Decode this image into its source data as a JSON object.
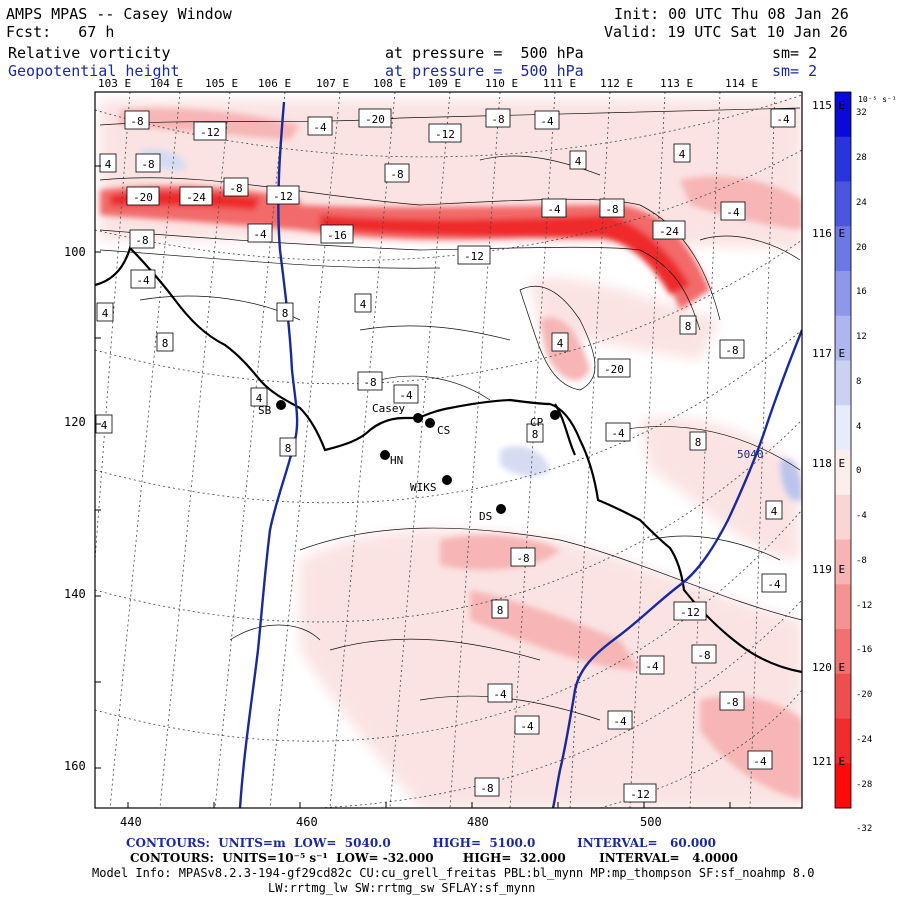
{
  "header": {
    "title": "AMPS MPAS -- Casey Window",
    "forecast": "Fcst:   67 h",
    "init": "Init: 00 UTC Thu 08 Jan 26",
    "valid": "Valid: 19 UTC Sat 10 Jan 26",
    "field1": {
      "name": "Relative vorticity",
      "level": "at pressure =  500 hPa",
      "sm": "sm= 2"
    },
    "field2": {
      "name": "Geopotential height",
      "level": "at pressure =  500 hPa",
      "sm": "sm= 2"
    }
  },
  "top_lon_labels": [
    "103 E",
    "104 E",
    "105 E",
    "106 E",
    "107 E",
    "108 E",
    "109 E",
    "110 E",
    "111 E",
    "112 E",
    "113 E",
    "114 E"
  ],
  "right_lon_labels": [
    "115 E",
    "116 E",
    "117 E",
    "118 E",
    "119 E",
    "120 E",
    "121 E"
  ],
  "x_axis_labels": [
    "440",
    "460",
    "480",
    "500"
  ],
  "y_axis_labels": [
    "100",
    "120",
    "140",
    "160"
  ],
  "stations": [
    {
      "name": "SB"
    },
    {
      "name": "Casey"
    },
    {
      "name": "CS"
    },
    {
      "name": "HN"
    },
    {
      "name": "WIKS"
    },
    {
      "name": "DS"
    },
    {
      "name": "CP"
    }
  ],
  "height_contour_label": "5040",
  "vort_labels": [
    "-8",
    "-12",
    "-4",
    "-20",
    "-12",
    "-8",
    "-4",
    "-4",
    "4",
    "-8",
    "4",
    "4",
    "-8",
    "-20",
    "-24",
    "-8",
    "-12",
    "-4",
    "-16",
    "-12",
    "-4",
    "-8",
    "-24",
    "-4",
    "-8",
    "-4",
    "4",
    "4",
    "8",
    "8",
    "4",
    "8",
    "-8",
    "-20",
    "-8",
    "-4",
    "4",
    "4",
    "8",
    "8",
    "-4",
    "8",
    "4",
    "-8",
    "-4",
    "8",
    "-12",
    "-8",
    "-4",
    "-4",
    "-4",
    "-8",
    "-4",
    "-4",
    "-8",
    "-12",
    "-8",
    "-4"
  ],
  "colorbar": {
    "unit": "10⁻⁵ s⁻¹",
    "labels": [
      "32",
      "28",
      "24",
      "20",
      "16",
      "12",
      "8",
      "4",
      "0",
      "-4",
      "-8",
      "-12",
      "-16",
      "-20",
      "-24",
      "-28",
      "-32"
    ],
    "colors": {
      "blue_dark": "#1010e0",
      "blue_light": "#dfe3f5",
      "red_light": "#fce6e6",
      "red_dark": "#ff1010"
    }
  },
  "footer": {
    "line1": "CONTOURS:  UNITS=m  LOW=  5040.0          HIGH=  5100.0          INTERVAL=   60.000",
    "line2": "CONTOURS:  UNITS=10⁻⁵ s⁻¹  LOW= -32.000       HIGH=  32.000        INTERVAL=   4.0000",
    "line3": "Model Info: MPASv8.2.3-194-gf29cd82c CU:cu_grell_freitas PBL:bl_mynn MP:mp_thompson SF:sf_noahmp 8.0",
    "line4": "LW:rrtmg_lw SW:rrtmg_sw SFLAY:sf_mynn"
  }
}
